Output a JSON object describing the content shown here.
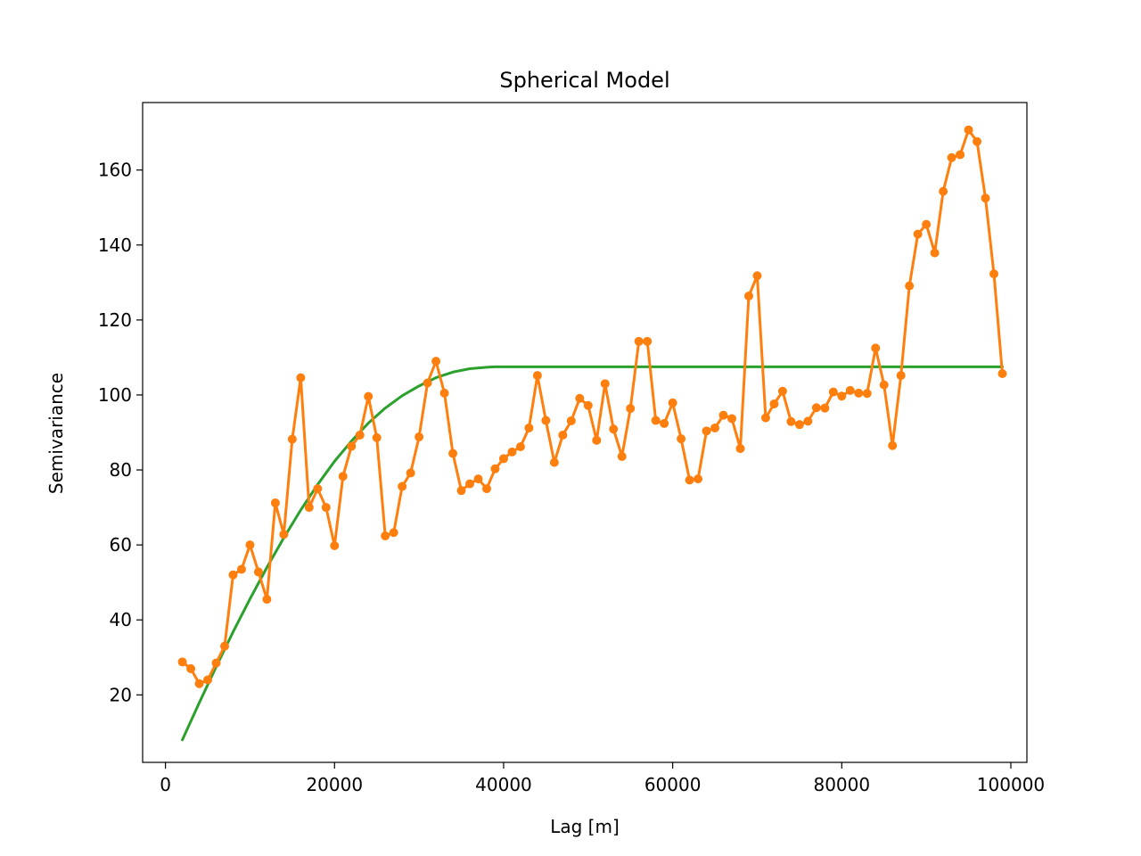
{
  "chart_data": {
    "type": "line",
    "title": "Spherical Model",
    "xlabel": "Lag [m]",
    "ylabel": "Semivariance",
    "xlim": [
      -2700,
      101900
    ],
    "ylim": [
      2,
      178
    ],
    "xticks": [
      0,
      20000,
      40000,
      60000,
      80000,
      100000
    ],
    "xtick_labels": [
      "0",
      "20000",
      "40000",
      "60000",
      "80000",
      "100000"
    ],
    "yticks": [
      20,
      40,
      60,
      80,
      100,
      120,
      140,
      160
    ],
    "ytick_labels": [
      "20",
      "40",
      "60",
      "80",
      "100",
      "120",
      "140",
      "160"
    ],
    "grid": false,
    "series": [
      {
        "kind": "empirical",
        "color": "#ff7f0e",
        "marker": "dot",
        "x": [
          2000,
          3000,
          4000,
          5000,
          6000,
          7000,
          8000,
          9000,
          10000,
          11000,
          12000,
          13000,
          14000,
          15000,
          16000,
          17000,
          18000,
          19000,
          20000,
          21000,
          22000,
          23000,
          24000,
          25000,
          26000,
          27000,
          28000,
          29000,
          30000,
          31000,
          32000,
          33000,
          34000,
          35000,
          36000,
          37000,
          38000,
          39000,
          40000,
          41000,
          42000,
          43000,
          44000,
          45000,
          46000,
          47000,
          48000,
          49000,
          50000,
          51000,
          52000,
          53000,
          54000,
          55000,
          56000,
          57000,
          58000,
          59000,
          60000,
          61000,
          62000,
          63000,
          64000,
          65000,
          66000,
          67000,
          68000,
          69000,
          70000,
          71000,
          72000,
          73000,
          74000,
          75000,
          76000,
          77000,
          78000,
          79000,
          80000,
          81000,
          82000,
          83000,
          84000,
          85000,
          86000,
          87000,
          88000,
          89000,
          90000,
          91000,
          92000,
          93000,
          94000,
          95000,
          96000,
          97000,
          98000,
          99000
        ],
        "y": [
          28.8,
          27.0,
          23.0,
          24.0,
          28.5,
          33.0,
          52.0,
          53.5,
          60.0,
          52.8,
          45.5,
          71.2,
          62.8,
          88.2,
          104.6,
          70.0,
          75.0,
          70.0,
          59.8,
          78.3,
          86.3,
          89.3,
          99.6,
          88.6,
          62.4,
          63.3,
          75.6,
          79.2,
          88.8,
          103.2,
          109.0,
          100.5,
          84.4,
          74.5,
          76.3,
          77.6,
          75.0,
          80.3,
          83.0,
          84.8,
          86.2,
          91.2,
          105.2,
          93.2,
          82.0,
          89.3,
          93.1,
          99.1,
          97.2,
          87.9,
          103.0,
          90.9,
          83.6,
          96.4,
          114.3,
          114.3,
          93.2,
          92.4,
          97.9,
          88.3,
          77.3,
          77.6,
          90.4,
          91.2,
          94.6,
          93.7,
          85.7,
          126.4,
          131.8,
          93.9,
          97.6,
          101.0,
          92.9,
          92.1,
          93.0,
          96.6,
          96.5,
          100.8,
          99.7,
          101.2,
          100.5,
          100.4,
          112.5,
          102.7,
          86.5,
          105.2,
          129.1,
          142.9,
          145.5,
          137.9,
          154.3,
          163.3,
          164.1,
          170.7,
          167.6,
          152.5,
          132.3,
          105.7
        ]
      },
      {
        "kind": "model",
        "color": "#2ca02c",
        "x": [
          2000,
          4000,
          6000,
          8000,
          10000,
          12000,
          14000,
          16000,
          18000,
          20000,
          22000,
          24000,
          26000,
          28000,
          30000,
          32000,
          34000,
          36000,
          38000,
          38900,
          40000,
          50000,
          60000,
          70000,
          80000,
          90000,
          99000
        ],
        "y": [
          8.0,
          17.9,
          27.5,
          36.8,
          45.6,
          54.0,
          61.9,
          69.3,
          76.1,
          82.3,
          87.7,
          92.5,
          96.5,
          99.8,
          102.4,
          104.6,
          106.1,
          107.0,
          107.4,
          107.5,
          107.5,
          107.5,
          107.5,
          107.5,
          107.5,
          107.5,
          107.5
        ]
      }
    ]
  }
}
